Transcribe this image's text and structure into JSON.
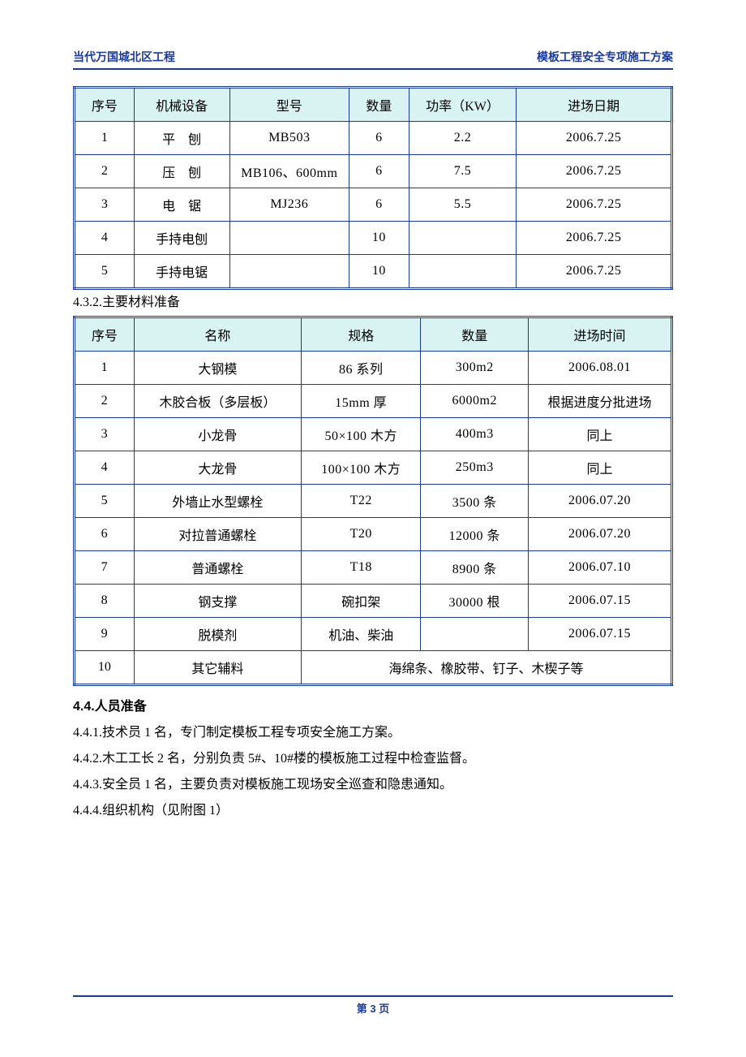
{
  "header": {
    "left": "当代万国城北区工程",
    "right": "模板工程安全专项施工方案"
  },
  "table1": {
    "columns": [
      "序号",
      "机械设备",
      "型号",
      "数量",
      "功率（KW）",
      "进场日期"
    ],
    "col_widths": [
      "10%",
      "16%",
      "20%",
      "10%",
      "18%",
      "26%"
    ],
    "rows": [
      [
        "1",
        "平　刨",
        "MB503",
        "6",
        "2.2",
        "2006.7.25"
      ],
      [
        "2",
        "压　刨",
        "MB106、600mm",
        "6",
        "7.5",
        "2006.7.25"
      ],
      [
        "3",
        "电　锯",
        "MJ236",
        "6",
        "5.5",
        "2006.7.25"
      ],
      [
        "4",
        "手持电刨",
        "",
        "10",
        "",
        "2006.7.25"
      ],
      [
        "5",
        "手持电锯",
        "",
        "10",
        "",
        "2006.7.25"
      ]
    ]
  },
  "section_432": "4.3.2.主要材料准备",
  "table2": {
    "columns": [
      "序号",
      "名称",
      "规格",
      "数量",
      "进场时间"
    ],
    "col_widths": [
      "10%",
      "28%",
      "20%",
      "18%",
      "24%"
    ],
    "rows": [
      [
        "1",
        "大钢模",
        "86 系列",
        "300m2",
        "2006.08.01"
      ],
      [
        "2",
        "木胶合板（多层板）",
        "15mm 厚",
        "6000m2",
        "根据进度分批进场"
      ],
      [
        "3",
        "小龙骨",
        "50×100 木方",
        "400m3",
        "同上"
      ],
      [
        "4",
        "大龙骨",
        "100×100 木方",
        "250m3",
        "同上"
      ],
      [
        "5",
        "外墙止水型螺栓",
        "T22",
        "3500 条",
        "2006.07.20"
      ],
      [
        "6",
        "对拉普通螺栓",
        "T20",
        "12000 条",
        "2006.07.20"
      ],
      [
        "7",
        "普通螺栓",
        "T18",
        "8900 条",
        "2006.07.10"
      ],
      [
        "8",
        "钢支撑",
        "碗扣架",
        "30000 根",
        "2006.07.15"
      ],
      [
        "9",
        "脱模剂",
        "机油、柴油",
        "",
        "2006.07.15"
      ]
    ],
    "last_row": {
      "index": "10",
      "name": "其它辅料",
      "merged": "海绵条、橡胶带、钉子、木楔子等"
    }
  },
  "section_44": {
    "title": "4.4.人员准备",
    "items": [
      "4.4.1.技术员 1 名，专门制定模板工程专项安全施工方案。",
      "4.4.2.木工工长 2 名，分别负责 5#、10#楼的模板施工过程中检查监督。",
      "4.4.3.安全员 1 名，主要负责对模板施工现场安全巡查和隐患通知。",
      "4.4.4.组织机构（见附图 1）"
    ]
  },
  "footer": {
    "page_label": "第 3 页"
  },
  "style": {
    "header_bg": "#d9f2f2",
    "border_color": "#1b3b9c",
    "text_color": "#000000"
  }
}
